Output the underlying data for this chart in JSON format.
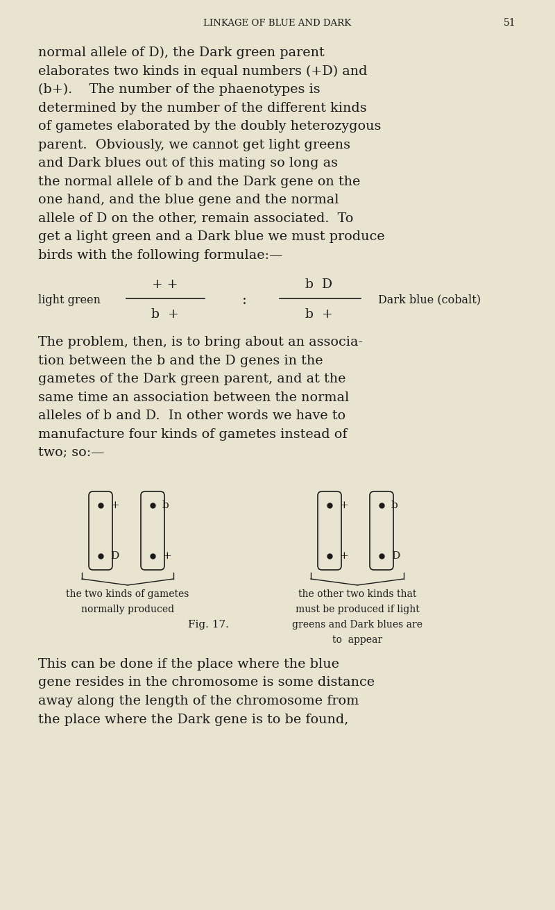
{
  "bg_color": "#e8e4d0",
  "text_color": "#1a1a1a",
  "page_width": 8.0,
  "page_height": 13.11,
  "header_text": "LINKAGE OF BLUE AND DARK",
  "page_number": "51",
  "body_lines": [
    "normal allele of D), the Dark green parent",
    "elaborates two kinds in equal numbers (+D) and",
    "(b+).    The number of the phaenotypes is",
    "determined by the number of the different kinds",
    "of gametes elaborated by the doubly heterozygous",
    "parent.  Obviously, we cannot get light greens",
    "and Dark blues out of this mating so long as",
    "the normal allele of b and the Dark gene on the",
    "one hand, and the blue gene and the normal",
    "allele of D on the other, remain associated.  To",
    "get a light green and a Dark blue we must produce",
    "birds with the following formulae:—"
  ],
  "formula_line1_left": "+ +",
  "formula_line1_right": "b  D",
  "formula_label_left": "light green",
  "formula_label_right": "Dark blue (cobalt)",
  "formula_line2_left": "b  +",
  "formula_line2_right": "b  +",
  "body_lines2": [
    "The problem, then, is to bring about an associa-",
    "tion between the b and the D genes in the",
    "gametes of the Dark green parent, and at the",
    "same time an association between the normal",
    "alleles of b and D.  In other words we have to",
    "manufacture four kinds of gametes instead of",
    "two; so:—"
  ],
  "fig_caption_left1": "the two kinds of gametes",
  "fig_caption_left2": "normally produced",
  "fig_caption_right1": "the other two kinds that",
  "fig_caption_right2": "must be produced if light",
  "fig_caption_right3": "greens and Dark blues are",
  "fig_caption_right4": "to  appear",
  "fig_label": "Fig. 17.",
  "body_lines3": [
    "This can be done if the place where the blue",
    "gene resides in the chromosome is some distance",
    "away along the length of the chromosome from",
    "the place where the Dark gene is to be found,"
  ]
}
